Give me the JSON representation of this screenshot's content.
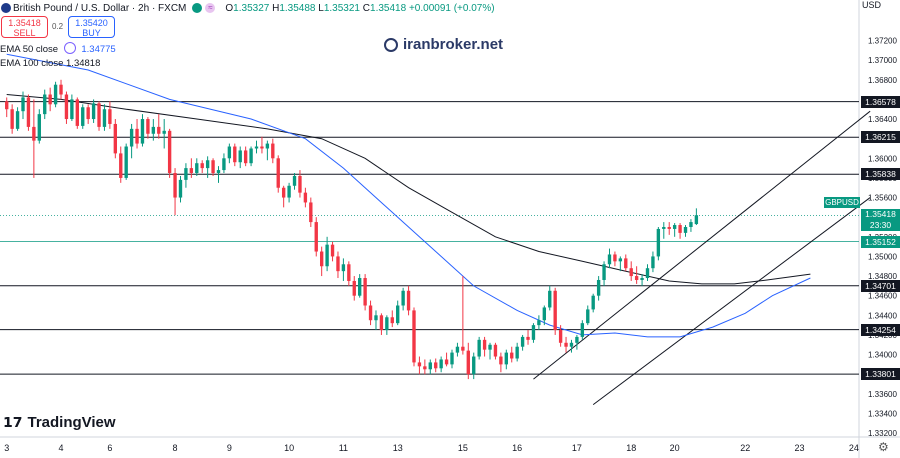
{
  "header": {
    "symbol": "British Pound / U.S. Dollar · 2h · FXCM",
    "o_label": "O",
    "o_value": "1.35327",
    "h_label": "H",
    "h_value": "1.35488",
    "l_label": "L",
    "l_value": "1.35321",
    "c_label": "C",
    "c_value": "1.35418",
    "change": "+0.00091 (+0.07%)",
    "icons": [
      "flag-icon",
      "status-dot-icon",
      "waves-icon"
    ]
  },
  "trade": {
    "sell_price": "1.35418",
    "sell_label": "SELL",
    "spread": "0.2",
    "buy_price": "1.35420",
    "buy_label": "BUY"
  },
  "indicators": {
    "ema50_label": "EMA 50 close",
    "ema50_value": "1.34775",
    "ema100_label": "EMA 100 close",
    "ema100_value": "1.34818"
  },
  "watermark": "iranbroker.net",
  "branding": "TradingView",
  "axis": {
    "currency": "USD"
  },
  "colors": {
    "up": "#089981",
    "down": "#f23645",
    "ema50": "#2962ff",
    "ema100": "#131722"
  },
  "chart_data": {
    "type": "candlestick",
    "instrument": "GBPUSD",
    "timeframe": "2h",
    "ylim": [
      1.3316,
      1.3745
    ],
    "y_ticks": [
      1.332,
      1.334,
      1.336,
      1.338,
      1.34,
      1.342,
      1.344,
      1.346,
      1.348,
      1.35,
      1.352,
      1.354,
      1.356,
      1.358,
      1.36,
      1.362,
      1.364,
      1.366,
      1.368,
      1.37,
      1.372
    ],
    "y_tick_labels": [
      "1.33200",
      "1.33400",
      "1.33600",
      "1.33800",
      "1.34000",
      "1.34200",
      "1.34400",
      "1.34600",
      "1.34800",
      "1.35000",
      "1.35200",
      "1.35400",
      "1.35600",
      "1.35800",
      "1.36000",
      "1.36200",
      "1.36400",
      "1.36600",
      "1.36800",
      "1.37000",
      "1.37200"
    ],
    "x_ticks": [
      {
        "label": "3",
        "idx": 0
      },
      {
        "label": "4",
        "idx": 10
      },
      {
        "label": "6",
        "idx": 19
      },
      {
        "label": "8",
        "idx": 31
      },
      {
        "label": "9",
        "idx": 41
      },
      {
        "label": "10",
        "idx": 52
      },
      {
        "label": "11",
        "idx": 62
      },
      {
        "label": "13",
        "idx": 72
      },
      {
        "label": "15",
        "idx": 84
      },
      {
        "label": "16",
        "idx": 94
      },
      {
        "label": "17",
        "idx": 105
      },
      {
        "label": "18",
        "idx": 115
      },
      {
        "label": "20",
        "idx": 123
      },
      {
        "label": "22",
        "idx": 136
      },
      {
        "label": "23",
        "idx": 146
      },
      {
        "label": "24",
        "idx": 156
      }
    ],
    "candles": [
      [
        1.3658,
        1.3662,
        1.3642,
        1.365
      ],
      [
        1.365,
        1.3655,
        1.3625,
        1.363
      ],
      [
        1.363,
        1.3652,
        1.3628,
        1.3648
      ],
      [
        1.3648,
        1.3668,
        1.364,
        1.3662
      ],
      [
        1.3662,
        1.3665,
        1.3628,
        1.3632
      ],
      [
        1.3632,
        1.366,
        1.358,
        1.3618
      ],
      [
        1.3618,
        1.365,
        1.3615,
        1.3645
      ],
      [
        1.3645,
        1.367,
        1.364,
        1.3665
      ],
      [
        1.3665,
        1.3672,
        1.3648,
        1.3655
      ],
      [
        1.3655,
        1.3678,
        1.3652,
        1.3675
      ],
      [
        1.3675,
        1.368,
        1.366,
        1.3665
      ],
      [
        1.3665,
        1.3668,
        1.3635,
        1.364
      ],
      [
        1.364,
        1.3665,
        1.3638,
        1.366
      ],
      [
        1.366,
        1.3662,
        1.363,
        1.3633
      ],
      [
        1.3633,
        1.3655,
        1.363,
        1.3652
      ],
      [
        1.3652,
        1.3655,
        1.3635,
        1.364
      ],
      [
        1.364,
        1.366,
        1.3636,
        1.3656
      ],
      [
        1.3656,
        1.3658,
        1.3628,
        1.3632
      ],
      [
        1.3632,
        1.3655,
        1.3628,
        1.365
      ],
      [
        1.365,
        1.3658,
        1.363,
        1.3635
      ],
      [
        1.3635,
        1.364,
        1.36,
        1.3605
      ],
      [
        1.3605,
        1.3612,
        1.3575,
        1.358
      ],
      [
        1.358,
        1.3615,
        1.3578,
        1.3612
      ],
      [
        1.3612,
        1.3635,
        1.36,
        1.363
      ],
      [
        1.363,
        1.364,
        1.361,
        1.3615
      ],
      [
        1.3615,
        1.3645,
        1.3612,
        1.364
      ],
      [
        1.364,
        1.3642,
        1.362,
        1.3625
      ],
      [
        1.3625,
        1.364,
        1.3618,
        1.3632
      ],
      [
        1.3632,
        1.3645,
        1.362,
        1.3625
      ],
      [
        1.3625,
        1.364,
        1.361,
        1.3628
      ],
      [
        1.3628,
        1.363,
        1.358,
        1.3585
      ],
      [
        1.3585,
        1.359,
        1.3542,
        1.356
      ],
      [
        1.356,
        1.3582,
        1.3555,
        1.3578
      ],
      [
        1.3578,
        1.3595,
        1.357,
        1.359
      ],
      [
        1.359,
        1.36,
        1.358,
        1.3585
      ],
      [
        1.3585,
        1.36,
        1.3582,
        1.3595
      ],
      [
        1.3595,
        1.3598,
        1.3585,
        1.359
      ],
      [
        1.359,
        1.3602,
        1.358,
        1.3598
      ],
      [
        1.3598,
        1.36,
        1.3582,
        1.3585
      ],
      [
        1.3585,
        1.3592,
        1.3575,
        1.3588
      ],
      [
        1.3588,
        1.3605,
        1.3585,
        1.36
      ],
      [
        1.36,
        1.3615,
        1.3595,
        1.3612
      ],
      [
        1.3612,
        1.3615,
        1.3592,
        1.3596
      ],
      [
        1.3596,
        1.3612,
        1.359,
        1.3608
      ],
      [
        1.3608,
        1.3612,
        1.3592,
        1.3595
      ],
      [
        1.3595,
        1.3612,
        1.3592,
        1.361
      ],
      [
        1.361,
        1.3618,
        1.3605,
        1.3612
      ],
      [
        1.3612,
        1.3622,
        1.3605,
        1.361
      ],
      [
        1.361,
        1.3618,
        1.3598,
        1.3615
      ],
      [
        1.3615,
        1.362,
        1.3595,
        1.36
      ],
      [
        1.36,
        1.3603,
        1.3565,
        1.357
      ],
      [
        1.357,
        1.3572,
        1.355,
        1.356
      ],
      [
        1.356,
        1.3575,
        1.3555,
        1.3572
      ],
      [
        1.3572,
        1.3585,
        1.3568,
        1.3582
      ],
      [
        1.3582,
        1.3588,
        1.356,
        1.3565
      ],
      [
        1.3565,
        1.357,
        1.355,
        1.3555
      ],
      [
        1.3555,
        1.356,
        1.353,
        1.3535
      ],
      [
        1.3535,
        1.354,
        1.35,
        1.3505
      ],
      [
        1.3505,
        1.351,
        1.348,
        1.349
      ],
      [
        1.349,
        1.352,
        1.3485,
        1.3512
      ],
      [
        1.3512,
        1.3515,
        1.3495,
        1.35
      ],
      [
        1.35,
        1.3505,
        1.3478,
        1.3485
      ],
      [
        1.3485,
        1.3498,
        1.3475,
        1.3492
      ],
      [
        1.3492,
        1.3495,
        1.347,
        1.3475
      ],
      [
        1.3475,
        1.348,
        1.3455,
        1.346
      ],
      [
        1.346,
        1.3482,
        1.3458,
        1.3478
      ],
      [
        1.3478,
        1.3482,
        1.3445,
        1.345
      ],
      [
        1.345,
        1.3455,
        1.343,
        1.3435
      ],
      [
        1.3435,
        1.3445,
        1.3425,
        1.344
      ],
      [
        1.344,
        1.3442,
        1.342,
        1.3425
      ],
      [
        1.3425,
        1.344,
        1.342,
        1.3438
      ],
      [
        1.3438,
        1.3445,
        1.3428,
        1.3432
      ],
      [
        1.3432,
        1.3455,
        1.343,
        1.345
      ],
      [
        1.345,
        1.3468,
        1.3445,
        1.3465
      ],
      [
        1.3465,
        1.347,
        1.344,
        1.3445
      ],
      [
        1.3445,
        1.3448,
        1.3388,
        1.3392
      ],
      [
        1.3392,
        1.3398,
        1.338,
        1.3388
      ],
      [
        1.3388,
        1.3395,
        1.338,
        1.3385
      ],
      [
        1.3385,
        1.3395,
        1.338,
        1.3392
      ],
      [
        1.3392,
        1.3396,
        1.3382,
        1.3386
      ],
      [
        1.3386,
        1.3398,
        1.3382,
        1.3395
      ],
      [
        1.3395,
        1.3402,
        1.3388,
        1.339
      ],
      [
        1.339,
        1.3405,
        1.3386,
        1.3402
      ],
      [
        1.3402,
        1.3412,
        1.3398,
        1.3408
      ],
      [
        1.3408,
        1.348,
        1.34,
        1.3404
      ],
      [
        1.3404,
        1.3412,
        1.3375,
        1.338
      ],
      [
        1.338,
        1.3402,
        1.3375,
        1.3398
      ],
      [
        1.3398,
        1.3418,
        1.3395,
        1.3415
      ],
      [
        1.3415,
        1.3418,
        1.3398,
        1.3405
      ],
      [
        1.3405,
        1.3412,
        1.3395,
        1.341
      ],
      [
        1.341,
        1.3412,
        1.3395,
        1.3398
      ],
      [
        1.3398,
        1.3402,
        1.3382,
        1.339
      ],
      [
        1.339,
        1.3405,
        1.3385,
        1.3402
      ],
      [
        1.3402,
        1.3408,
        1.3392,
        1.3396
      ],
      [
        1.3396,
        1.3412,
        1.3393,
        1.3408
      ],
      [
        1.3408,
        1.342,
        1.3404,
        1.3418
      ],
      [
        1.3418,
        1.3425,
        1.341,
        1.3415
      ],
      [
        1.3415,
        1.3432,
        1.3412,
        1.343
      ],
      [
        1.343,
        1.344,
        1.3425,
        1.3435
      ],
      [
        1.3435,
        1.345,
        1.343,
        1.3448
      ],
      [
        1.3448,
        1.347,
        1.3445,
        1.3465
      ],
      [
        1.3465,
        1.3468,
        1.342,
        1.3425
      ],
      [
        1.3425,
        1.343,
        1.3408,
        1.3412
      ],
      [
        1.3412,
        1.3418,
        1.3402,
        1.3408
      ],
      [
        1.3408,
        1.3415,
        1.3402,
        1.3412
      ],
      [
        1.3412,
        1.342,
        1.3405,
        1.3418
      ],
      [
        1.3418,
        1.3435,
        1.3415,
        1.3432
      ],
      [
        1.3432,
        1.345,
        1.343,
        1.3446
      ],
      [
        1.3446,
        1.3462,
        1.3443,
        1.346
      ],
      [
        1.346,
        1.348,
        1.3455,
        1.3476
      ],
      [
        1.3476,
        1.3495,
        1.347,
        1.3492
      ],
      [
        1.3492,
        1.3508,
        1.3488,
        1.3502
      ],
      [
        1.3502,
        1.3505,
        1.349,
        1.3495
      ],
      [
        1.3495,
        1.35,
        1.3485,
        1.3498
      ],
      [
        1.3498,
        1.3502,
        1.3485,
        1.3488
      ],
      [
        1.3488,
        1.3495,
        1.3475,
        1.348
      ],
      [
        1.348,
        1.349,
        1.3472,
        1.3476
      ],
      [
        1.3476,
        1.3482,
        1.347,
        1.3478
      ],
      [
        1.3478,
        1.3492,
        1.3475,
        1.3488
      ],
      [
        1.3488,
        1.3505,
        1.3484,
        1.35
      ],
      [
        1.35,
        1.353,
        1.3496,
        1.3528
      ],
      [
        1.3528,
        1.3535,
        1.3518,
        1.353
      ],
      [
        1.353,
        1.3535,
        1.3522,
        1.3528
      ],
      [
        1.3528,
        1.3534,
        1.352,
        1.3532
      ],
      [
        1.3532,
        1.3534,
        1.3518,
        1.3524
      ],
      [
        1.3524,
        1.3532,
        1.352,
        1.353
      ],
      [
        1.353,
        1.3538,
        1.3525,
        1.3535
      ],
      [
        1.3533,
        1.3549,
        1.3532,
        1.3542
      ]
    ],
    "x_slots": 158,
    "ema50": [
      [
        0,
        1.3706
      ],
      [
        15,
        1.369
      ],
      [
        30,
        1.366
      ],
      [
        45,
        1.364
      ],
      [
        55,
        1.362
      ],
      [
        62,
        1.359
      ],
      [
        70,
        1.355
      ],
      [
        78,
        1.351
      ],
      [
        86,
        1.347
      ],
      [
        94,
        1.3445
      ],
      [
        100,
        1.343
      ],
      [
        106,
        1.342
      ],
      [
        112,
        1.3422
      ],
      [
        118,
        1.3418
      ],
      [
        124,
        1.3418
      ],
      [
        130,
        1.3428
      ],
      [
        136,
        1.3442
      ],
      [
        141,
        1.346
      ],
      [
        148,
        1.3478
      ]
    ],
    "ema100": [
      [
        0,
        1.3665
      ],
      [
        10,
        1.366
      ],
      [
        22,
        1.365
      ],
      [
        35,
        1.364
      ],
      [
        48,
        1.363
      ],
      [
        58,
        1.362
      ],
      [
        66,
        1.36
      ],
      [
        74,
        1.357
      ],
      [
        82,
        1.3545
      ],
      [
        90,
        1.352
      ],
      [
        98,
        1.3505
      ],
      [
        106,
        1.3495
      ],
      [
        114,
        1.3485
      ],
      [
        122,
        1.3475
      ],
      [
        128,
        1.3472
      ],
      [
        134,
        1.3472
      ],
      [
        140,
        1.3476
      ],
      [
        148,
        1.3482
      ]
    ],
    "levels": [
      {
        "value": 1.36578,
        "label": "1.36578"
      },
      {
        "value": 1.36215,
        "label": "1.36215"
      },
      {
        "value": 1.35838,
        "label": "1.35838"
      },
      {
        "value": 1.35152,
        "label": "1.35152",
        "color": "green"
      },
      {
        "value": 1.34701,
        "label": "1.34701"
      },
      {
        "value": 1.34254,
        "label": "1.34254"
      },
      {
        "value": 1.33801,
        "label": "1.33801"
      }
    ],
    "channel": {
      "upper": [
        [
          97,
          1.3375
        ],
        [
          159,
          1.3648
        ]
      ],
      "lower": [
        [
          108,
          1.3349
        ],
        [
          159,
          1.356
        ]
      ]
    },
    "current_price": {
      "value": 1.35418,
      "label": "1.35418",
      "countdown": "23:30",
      "symbol_tag": "GBPUSD"
    },
    "hidden_tick_label": "1.35200"
  }
}
